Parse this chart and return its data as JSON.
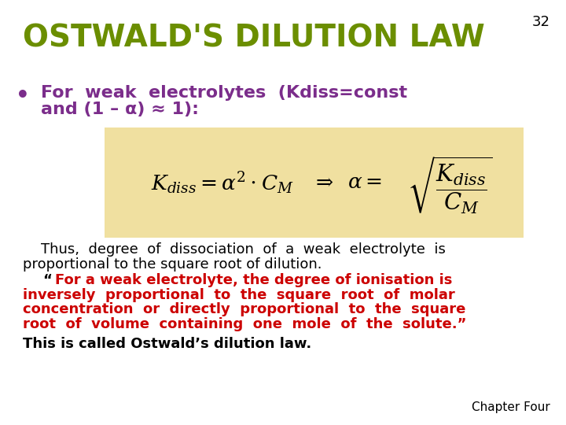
{
  "title": "OSTWALD'S DILUTION LAW",
  "title_color": "#6B8E00",
  "slide_number": "32",
  "background_color": "#FFFFFF",
  "bullet_color": "#7B2D8B",
  "bullet_text_line1": "For  weak  electrolytes  (Kdiss=const",
  "bullet_text_line2": "and (1 – α) ≈ 1):",
  "formula_box_color": "#F0E0A0",
  "thus_line1": "    Thus,  degree  of  dissociation  of  a  weak  electrolyte  is",
  "thus_line2": "proportional to the square root of dilution.",
  "open_quote": "“",
  "quote_line1": "For a weak electrolyte, the degree of ionisation is",
  "quote_line2": "inversely  proportional  to  the  square  root  of  molar",
  "quote_line3": "concentration  or  directly  proportional  to  the  square",
  "quote_line4": "root  of  volume  containing  one  mole  of  the  solute.",
  "close_quote": "”",
  "quote_color": "#CC0000",
  "last_line": "This is called Ostwald’s dilution law.",
  "chapter_text": "Chapter Four"
}
